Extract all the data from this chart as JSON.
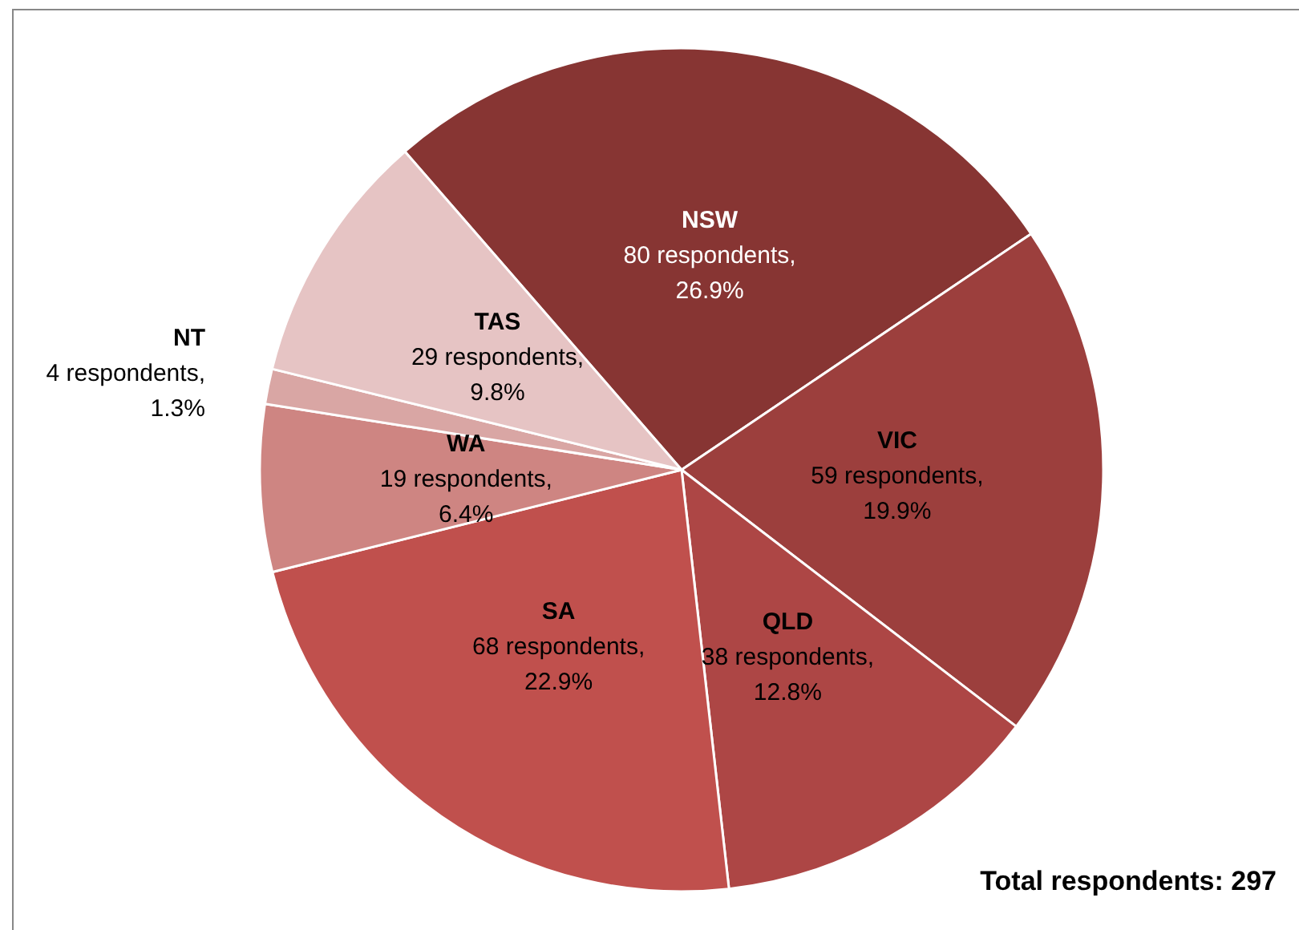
{
  "chart_data": {
    "type": "pie",
    "categories": [
      "NSW",
      "VIC",
      "QLD",
      "SA",
      "WA",
      "NT",
      "TAS"
    ],
    "values": [
      80,
      59,
      38,
      68,
      19,
      4,
      29
    ],
    "colors": [
      "#873533",
      "#9c3f3d",
      "#ad4645",
      "#c0504d",
      "#ce8582",
      "#d9a6a4",
      "#e6c4c4"
    ],
    "value_labels": [
      "80 respondents,\n26.9%",
      "59 respondents,\n19.9%",
      "38 respondents,\n12.8%",
      "68 respondents,\n22.9%",
      "19 respondents,\n6.4%",
      "4 respondents,\n1.3%",
      "29 respondents,\n9.8%"
    ],
    "annotations": [
      "Total respondents: 297"
    ],
    "legend": false
  }
}
